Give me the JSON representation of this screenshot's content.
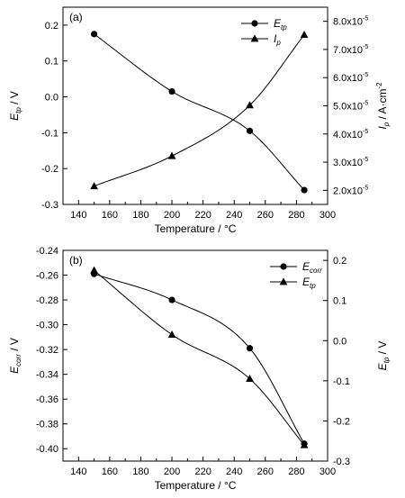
{
  "chart_data": [
    {
      "type": "scatter",
      "panel_label": "(a)",
      "x": [
        150,
        200,
        250,
        285
      ],
      "xlabel": "Temperature / °C",
      "xlim": [
        130,
        300
      ],
      "xticks": [
        "140",
        "160",
        "180",
        "200",
        "220",
        "240",
        "260",
        "280",
        "300"
      ],
      "y_left": {
        "label_main": "E",
        "label_sub": "tp",
        "label_unit": " / V",
        "lim": [
          -0.3,
          0.25
        ],
        "ticks": [
          "-0.3",
          "-0.2",
          "-0.1",
          "0.0",
          "0.1",
          "0.2"
        ]
      },
      "y_right": {
        "label_main": "I",
        "label_sub": "p",
        "label_unit": " / A·cm",
        "label_sup": "-2",
        "lim": [
          1.5e-05,
          8.5e-05
        ],
        "ticks": [
          "2.0x10",
          "3.0x10",
          "4.0x10",
          "5.0x10",
          "6.0x10",
          "7.0x10",
          "8.0x10"
        ],
        "tick_exp": "-5"
      },
      "series": [
        {
          "name": "E",
          "name_sub": "tp",
          "marker": "circle",
          "axis": "left",
          "values": [
            0.175,
            0.015,
            -0.095,
            -0.26
          ]
        },
        {
          "name": "I",
          "name_sub": "p",
          "marker": "triangle",
          "axis": "right",
          "values": [
            2.15e-05,
            3.22e-05,
            5.02e-05,
            7.52e-05
          ]
        }
      ],
      "legend": "top-right",
      "grid": false
    },
    {
      "type": "scatter",
      "panel_label": "(b)",
      "x": [
        150,
        200,
        250,
        285
      ],
      "xlabel": "Temperature / °C",
      "xlim": [
        130,
        300
      ],
      "xticks": [
        "140",
        "160",
        "180",
        "200",
        "220",
        "240",
        "260",
        "280",
        "300"
      ],
      "y_left": {
        "label_main": "E",
        "label_sub": "corr",
        "label_unit": " / V",
        "lim": [
          -0.41,
          -0.24
        ],
        "ticks": [
          "-0.40",
          "-0.38",
          "-0.36",
          "-0.34",
          "-0.32",
          "-0.30",
          "-0.28",
          "-0.26",
          "-0.24"
        ]
      },
      "y_right": {
        "label_main": "E",
        "label_sub": "tp",
        "label_unit": " / V",
        "lim": [
          -0.3,
          0.225
        ],
        "ticks": [
          "-0.3",
          "-0.2",
          "-0.1",
          "0.0",
          "0.1",
          "0.2"
        ]
      },
      "series": [
        {
          "name": "E",
          "name_sub": "corr",
          "marker": "circle",
          "axis": "left",
          "values": [
            -0.259,
            -0.28,
            -0.319,
            -0.396
          ]
        },
        {
          "name": "E",
          "name_sub": "tp",
          "marker": "triangle",
          "axis": "right",
          "values": [
            0.175,
            0.015,
            -0.095,
            -0.26
          ]
        }
      ],
      "legend": "top-right",
      "grid": false
    }
  ]
}
